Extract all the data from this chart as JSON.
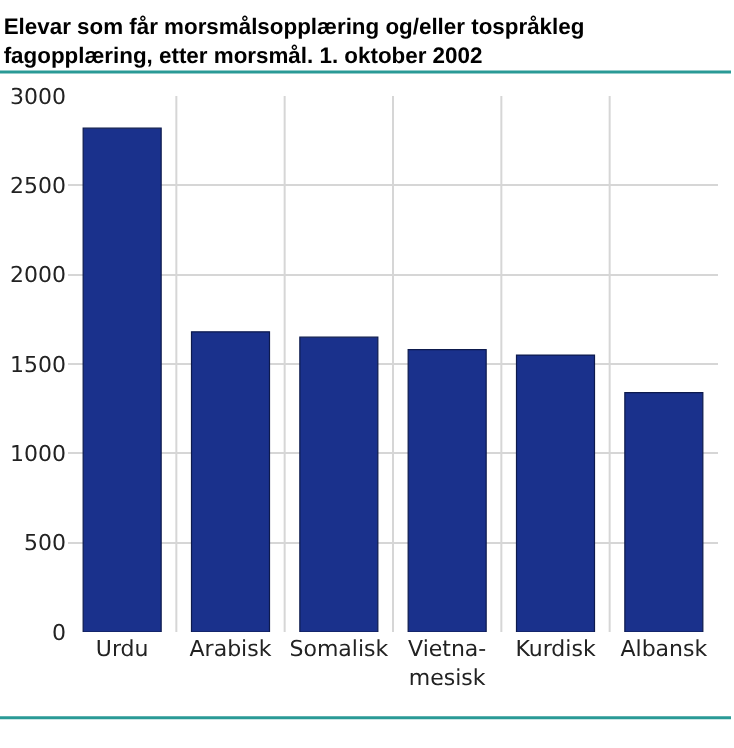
{
  "chart_data": {
    "type": "bar",
    "title": "Elevar som får morsmålsopplæring og/eller tospråkleg\nfagopplæring, etter morsmål. 1. oktober 2002",
    "categories": [
      "Urdu",
      "Arabisk",
      "Somalisk",
      "Vietna-\nmesisk",
      "Kurdisk",
      "Albansk"
    ],
    "values": [
      2820,
      1680,
      1650,
      1580,
      1550,
      1340
    ],
    "color": "#1a318c",
    "ylim": [
      0,
      3000
    ],
    "yticks": [
      0,
      500,
      1000,
      1500,
      2000,
      2500,
      3000
    ],
    "grid": true
  }
}
